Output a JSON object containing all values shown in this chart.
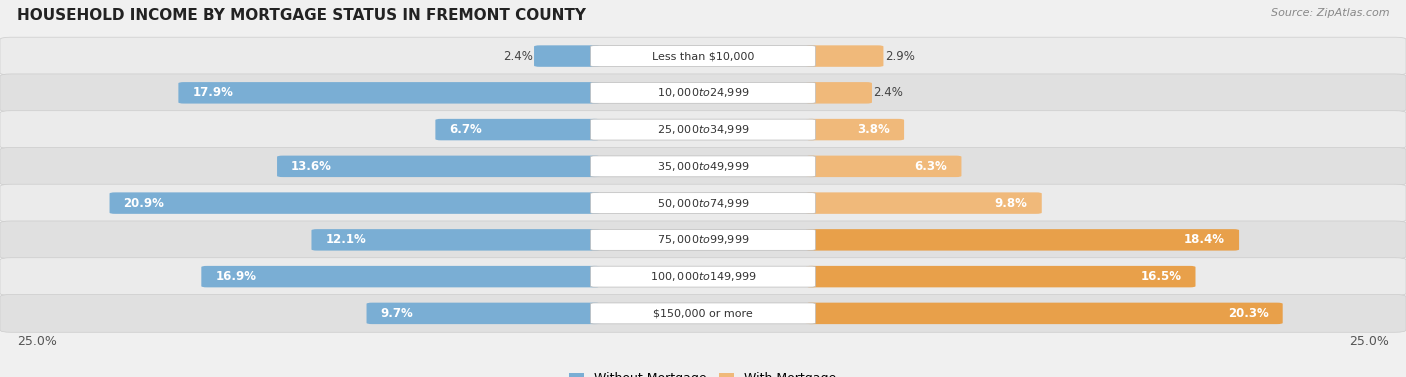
{
  "title": "HOUSEHOLD INCOME BY MORTGAGE STATUS IN FREMONT COUNTY",
  "source": "Source: ZipAtlas.com",
  "categories": [
    "Less than $10,000",
    "$10,000 to $24,999",
    "$25,000 to $34,999",
    "$35,000 to $49,999",
    "$50,000 to $74,999",
    "$75,000 to $99,999",
    "$100,000 to $149,999",
    "$150,000 or more"
  ],
  "without_mortgage": [
    2.4,
    17.9,
    6.7,
    13.6,
    20.9,
    12.1,
    16.9,
    9.7
  ],
  "with_mortgage": [
    2.9,
    2.4,
    3.8,
    6.3,
    9.8,
    18.4,
    16.5,
    20.3
  ],
  "color_without": "#7aaed4",
  "color_with": "#f0b97a",
  "color_with_dark": "#e8a04a",
  "bg_color": "#f0f0f0",
  "row_colors": [
    "#e8e8e8",
    "#d8d8d8"
  ],
  "max_value": 25.0,
  "title_fontsize": 11,
  "source_fontsize": 8,
  "bar_label_fontsize": 8.5,
  "cat_label_fontsize": 8,
  "legend_fontsize": 9,
  "axis_label": "25.0%"
}
